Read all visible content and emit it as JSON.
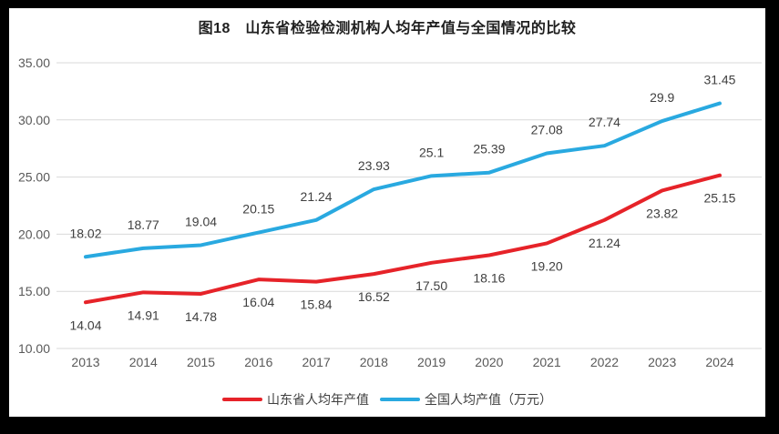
{
  "chart_data": {
    "type": "line",
    "title": "图18　山东省检验检测机构人均年产值与全国情况的比较",
    "categories": [
      "2013",
      "2014",
      "2015",
      "2016",
      "2017",
      "2018",
      "2019",
      "2020",
      "2021",
      "2022",
      "2023",
      "2024"
    ],
    "series": [
      {
        "name": "山东省人均年产值",
        "color": "#e62329",
        "values": [
          14.04,
          14.91,
          14.78,
          16.04,
          15.84,
          16.52,
          17.5,
          18.16,
          19.2,
          21.24,
          23.82,
          25.15
        ],
        "labels": [
          "14.04",
          "14.91",
          "14.78",
          "16.04",
          "15.84",
          "16.52",
          "17.50",
          "18.16",
          "19.20",
          "21.24",
          "23.82",
          "25.15"
        ],
        "label_side": "below"
      },
      {
        "name": "全国人均产值（万元）",
        "color": "#29a9e0",
        "values": [
          18.02,
          18.77,
          19.04,
          20.15,
          21.24,
          23.93,
          25.1,
          25.39,
          27.08,
          27.74,
          29.9,
          31.45
        ],
        "labels": [
          "18.02",
          "18.77",
          "19.04",
          "20.15",
          "21.24",
          "23.93",
          "25.1",
          "25.39",
          "27.08",
          "27.74",
          "29.9",
          "31.45"
        ],
        "label_side": "above"
      }
    ],
    "ylim": [
      10,
      35
    ],
    "ytick_step": 5,
    "yticks": [
      "10.00",
      "15.00",
      "20.00",
      "25.00",
      "30.00",
      "35.00"
    ],
    "grid": "horizontal",
    "legend_position": "bottom",
    "colors": {
      "grid": "#d9d9d9",
      "axis_text": "#595959",
      "label_text": "#3f3f3f",
      "background": "#ffffff",
      "frame": "#000000"
    }
  }
}
